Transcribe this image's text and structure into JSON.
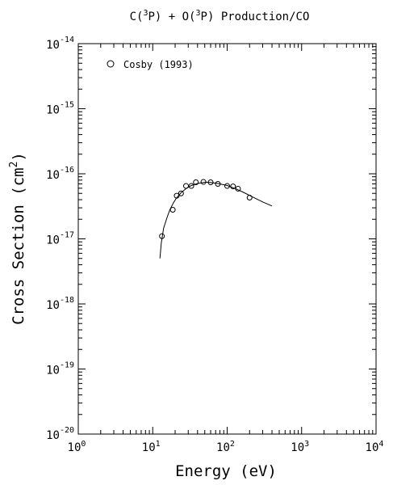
{
  "chart_data": {
    "type": "scatter",
    "title": {
      "prefix": "C(",
      "sup1": "3",
      "mid1": "P) + O(",
      "sup2": "3",
      "mid2": "P) Production/CO"
    },
    "xlabel": "Energy (eV)",
    "ylabel": {
      "main": "Cross Section (cm",
      "sup": "2",
      "close": ")"
    },
    "x_scale": "log",
    "y_scale": "log",
    "xlim": [
      1,
      10000
    ],
    "ylim": [
      1e-20,
      1e-14
    ],
    "x_ticks": [
      {
        "value": 1,
        "base": "10",
        "exp": "0"
      },
      {
        "value": 10,
        "base": "10",
        "exp": "1"
      },
      {
        "value": 100,
        "base": "10",
        "exp": "2"
      },
      {
        "value": 1000,
        "base": "10",
        "exp": "3"
      },
      {
        "value": 10000,
        "base": "10",
        "exp": "4"
      }
    ],
    "y_ticks": [
      {
        "value": 1e-14,
        "base": "10",
        "exp": "-14"
      },
      {
        "value": 1e-15,
        "base": "10",
        "exp": "-15"
      },
      {
        "value": 1e-16,
        "base": "10",
        "exp": "-16"
      },
      {
        "value": 1e-17,
        "base": "10",
        "exp": "-17"
      },
      {
        "value": 1e-18,
        "base": "10",
        "exp": "-18"
      },
      {
        "value": 1e-19,
        "base": "10",
        "exp": "-19"
      },
      {
        "value": 1e-20,
        "base": "10",
        "exp": "-20"
      }
    ],
    "grid": false,
    "legend_position": "top-left",
    "series": [
      {
        "name": "Cosby (1993)",
        "marker": "open-circle",
        "points": [
          {
            "x": 13.3,
            "y": 1.1e-17
          },
          {
            "x": 18.6,
            "y": 2.8e-17
          },
          {
            "x": 21.0,
            "y": 4.6e-17
          },
          {
            "x": 24.0,
            "y": 5e-17
          },
          {
            "x": 28.0,
            "y": 6.5e-17
          },
          {
            "x": 33.0,
            "y": 6.5e-17
          },
          {
            "x": 38.0,
            "y": 7.4e-17
          },
          {
            "x": 48.0,
            "y": 7.5e-17
          },
          {
            "x": 60.0,
            "y": 7.4e-17
          },
          {
            "x": 75.0,
            "y": 7e-17
          },
          {
            "x": 100.0,
            "y": 6.5e-17
          },
          {
            "x": 120.0,
            "y": 6.4e-17
          },
          {
            "x": 140.0,
            "y": 5.9e-17
          },
          {
            "x": 200.0,
            "y": 4.3e-17
          }
        ]
      }
    ],
    "fit_curve": {
      "points": [
        {
          "x": 12.5,
          "y": 5e-18
        },
        {
          "x": 13.0,
          "y": 8.5e-18
        },
        {
          "x": 14.0,
          "y": 1.45e-17
        },
        {
          "x": 15.5,
          "y": 2.1e-17
        },
        {
          "x": 17.0,
          "y": 2.8e-17
        },
        {
          "x": 19.0,
          "y": 3.6e-17
        },
        {
          "x": 21.0,
          "y": 4.3e-17
        },
        {
          "x": 24.0,
          "y": 5.1e-17
        },
        {
          "x": 28.0,
          "y": 5.9e-17
        },
        {
          "x": 33.0,
          "y": 6.6e-17
        },
        {
          "x": 40.0,
          "y": 7.1e-17
        },
        {
          "x": 50.0,
          "y": 7.4e-17
        },
        {
          "x": 60.0,
          "y": 7.35e-17
        },
        {
          "x": 75.0,
          "y": 7.1e-17
        },
        {
          "x": 100.0,
          "y": 6.6e-17
        },
        {
          "x": 130.0,
          "y": 5.9e-17
        },
        {
          "x": 170.0,
          "y": 5.1e-17
        },
        {
          "x": 220.0,
          "y": 4.4e-17
        },
        {
          "x": 300.0,
          "y": 3.7e-17
        },
        {
          "x": 400.0,
          "y": 3.2e-17
        }
      ]
    }
  }
}
